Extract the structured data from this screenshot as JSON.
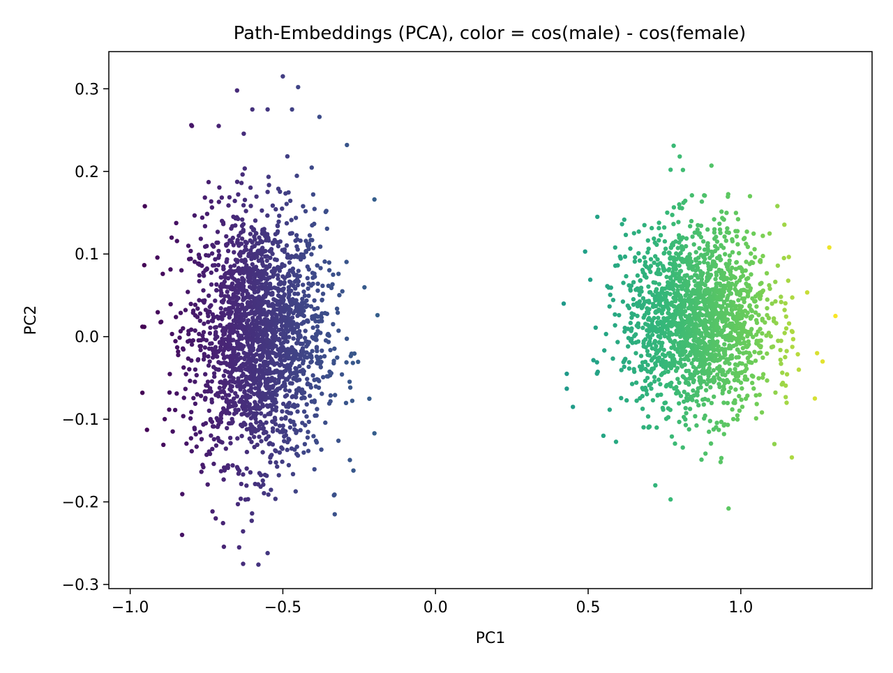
{
  "chart_data": {
    "type": "scatter",
    "title": "Path-Embeddings (PCA), color = cos(male) - cos(female)",
    "xlabel": "PC1",
    "ylabel": "PC2",
    "xlim": [
      -1.07,
      1.43
    ],
    "ylim": [
      -0.305,
      0.345
    ],
    "xticks": [
      {
        "value": -1.0,
        "label": "−1.0"
      },
      {
        "value": -0.5,
        "label": "−0.5"
      },
      {
        "value": 0.0,
        "label": "0.0"
      },
      {
        "value": 0.5,
        "label": "0.5"
      },
      {
        "value": 1.0,
        "label": "1.0"
      }
    ],
    "yticks": [
      {
        "value": 0.3,
        "label": "0.3"
      },
      {
        "value": 0.2,
        "label": "0.2"
      },
      {
        "value": 0.1,
        "label": "0.1"
      },
      {
        "value": 0.0,
        "label": "0.0"
      },
      {
        "value": -0.1,
        "label": "−0.1"
      },
      {
        "value": -0.2,
        "label": "−0.2"
      },
      {
        "value": -0.3,
        "label": "−0.3"
      }
    ],
    "grid": false,
    "colormap": "viridis",
    "clusters": [
      {
        "center": [
          -0.58,
          0.0
        ],
        "spread": [
          0.11,
          0.075
        ],
        "count": 2200
      },
      {
        "center": [
          0.86,
          0.02
        ],
        "spread": [
          0.12,
          0.055
        ],
        "count": 1800
      }
    ],
    "color_range_pc1": [
      -0.97,
      1.32
    ],
    "outlier_points": [
      [
        -0.5,
        0.315
      ],
      [
        -0.45,
        0.302
      ],
      [
        -0.65,
        0.298
      ],
      [
        -0.6,
        0.275
      ],
      [
        -0.55,
        0.275
      ],
      [
        -0.47,
        0.275
      ],
      [
        -0.38,
        0.266
      ],
      [
        -0.8,
        0.256
      ],
      [
        -0.71,
        0.255
      ],
      [
        -0.29,
        0.232
      ],
      [
        -0.2,
        0.166
      ],
      [
        -0.96,
        0.012
      ],
      [
        -0.19,
        0.026
      ],
      [
        -0.96,
        -0.068
      ],
      [
        -0.2,
        -0.117
      ],
      [
        -0.33,
        -0.215
      ],
      [
        -0.83,
        -0.24
      ],
      [
        -0.58,
        -0.276
      ],
      [
        -0.63,
        -0.275
      ],
      [
        -0.55,
        -0.262
      ],
      [
        0.78,
        0.231
      ],
      [
        0.77,
        0.202
      ],
      [
        0.8,
        0.218
      ],
      [
        0.84,
        0.171
      ],
      [
        0.88,
        0.171
      ],
      [
        1.03,
        0.17
      ],
      [
        1.12,
        0.158
      ],
      [
        0.53,
        0.145
      ],
      [
        0.49,
        0.103
      ],
      [
        1.29,
        0.108
      ],
      [
        0.42,
        0.04
      ],
      [
        1.31,
        0.025
      ],
      [
        1.25,
        -0.02
      ],
      [
        0.43,
        -0.045
      ],
      [
        0.43,
        -0.063
      ],
      [
        0.45,
        -0.085
      ],
      [
        1.15,
        -0.08
      ],
      [
        0.72,
        -0.18
      ],
      [
        0.77,
        -0.197
      ],
      [
        0.96,
        -0.208
      ],
      [
        1.11,
        -0.13
      ],
      [
        1.19,
        -0.04
      ],
      [
        0.55,
        -0.12
      ]
    ]
  }
}
